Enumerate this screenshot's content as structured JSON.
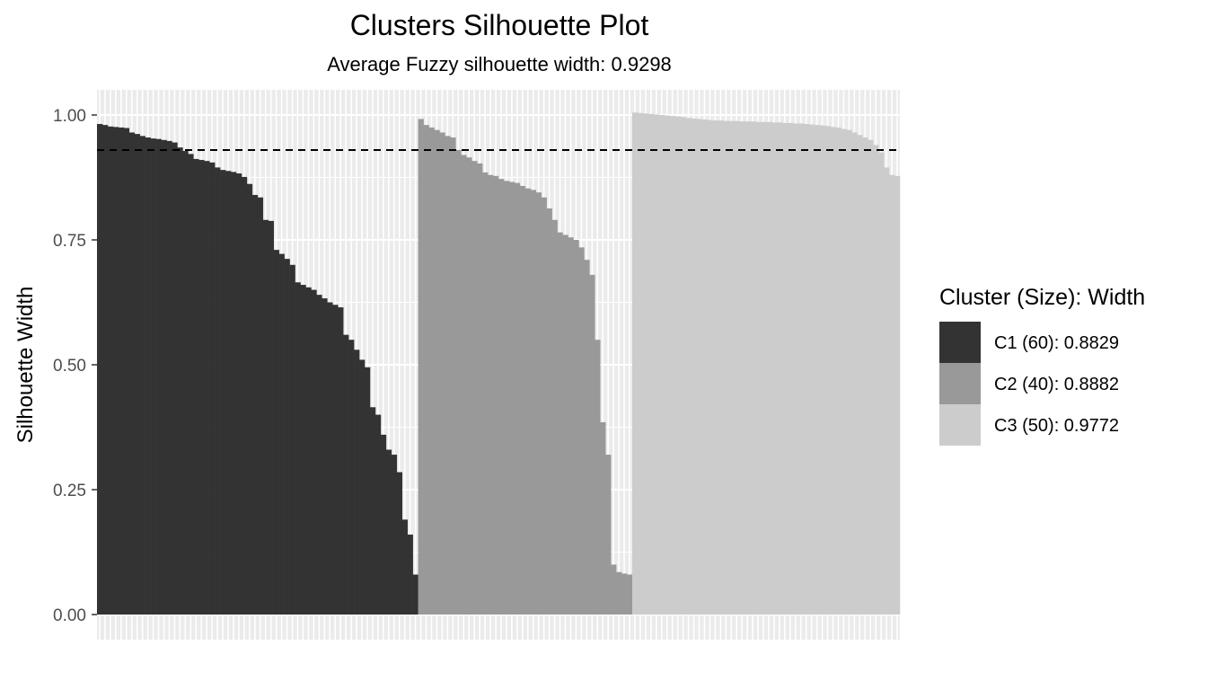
{
  "chart_data": {
    "type": "bar",
    "title": "Clusters Silhouette Plot",
    "subtitle": "Average Fuzzy silhouette width: 0.9298",
    "ylabel": "Silhouette Width",
    "xlabel": "",
    "ylim": [
      0,
      1.05
    ],
    "yticks": [
      "0.00",
      "0.25",
      "0.50",
      "0.75",
      "1.00"
    ],
    "average_line": 0.9298,
    "grid": true,
    "legend_position": "right",
    "legend_title": "Cluster (Size): Width",
    "clusters": [
      {
        "name": "C1 (60): 0.8829",
        "color": "#333333",
        "values": [
          0.982,
          0.98,
          0.977,
          0.976,
          0.975,
          0.974,
          0.965,
          0.962,
          0.958,
          0.955,
          0.953,
          0.952,
          0.95,
          0.948,
          0.945,
          0.935,
          0.928,
          0.922,
          0.912,
          0.91,
          0.908,
          0.905,
          0.895,
          0.89,
          0.888,
          0.886,
          0.883,
          0.876,
          0.862,
          0.84,
          0.835,
          0.79,
          0.788,
          0.73,
          0.722,
          0.712,
          0.7,
          0.665,
          0.66,
          0.655,
          0.65,
          0.64,
          0.633,
          0.625,
          0.62,
          0.615,
          0.56,
          0.55,
          0.53,
          0.51,
          0.495,
          0.415,
          0.4,
          0.36,
          0.33,
          0.32,
          0.285,
          0.19,
          0.16,
          0.08
        ]
      },
      {
        "name": "C2 (40): 0.8882",
        "color": "#999999",
        "values": [
          0.992,
          0.98,
          0.975,
          0.97,
          0.965,
          0.958,
          0.955,
          0.93,
          0.92,
          0.915,
          0.908,
          0.903,
          0.885,
          0.88,
          0.878,
          0.872,
          0.868,
          0.866,
          0.864,
          0.858,
          0.853,
          0.85,
          0.845,
          0.835,
          0.813,
          0.79,
          0.765,
          0.76,
          0.755,
          0.75,
          0.735,
          0.71,
          0.68,
          0.55,
          0.385,
          0.32,
          0.1,
          0.085,
          0.082,
          0.08
        ]
      },
      {
        "name": "C3 (50): 0.9772",
        "color": "#cccccc",
        "values": [
          1.005,
          1.004,
          1.003,
          1.002,
          1.001,
          1.0,
          0.999,
          0.998,
          0.997,
          0.996,
          0.994,
          0.993,
          0.992,
          0.991,
          0.99,
          0.989,
          0.989,
          0.988,
          0.988,
          0.988,
          0.987,
          0.987,
          0.987,
          0.986,
          0.986,
          0.986,
          0.985,
          0.985,
          0.984,
          0.984,
          0.983,
          0.983,
          0.982,
          0.981,
          0.98,
          0.979,
          0.978,
          0.976,
          0.975,
          0.972,
          0.97,
          0.965,
          0.96,
          0.955,
          0.95,
          0.94,
          0.925,
          0.895,
          0.88,
          0.878
        ]
      }
    ]
  }
}
